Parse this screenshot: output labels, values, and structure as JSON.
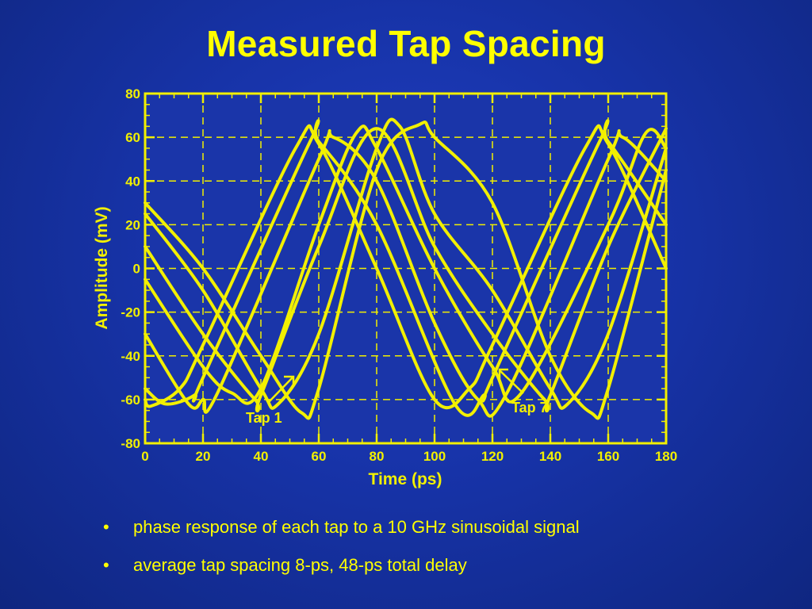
{
  "title": "Measured Tap Spacing",
  "bullets": [
    "phase response of each tap to a 10 GHz sinusoidal signal",
    "average tap spacing 8-ps, 48-ps total delay"
  ],
  "colors": {
    "background": "#1733a8",
    "accent": "#ffff00"
  },
  "chart_data": {
    "type": "line",
    "xlabel": "Time (ps)",
    "ylabel": "Amplitude (mV)",
    "xlim": [
      0,
      180
    ],
    "ylim": [
      -80,
      80
    ],
    "xticks": [
      0,
      20,
      40,
      60,
      80,
      100,
      120,
      140,
      160,
      180
    ],
    "yticks": [
      -80,
      -60,
      -40,
      -20,
      0,
      20,
      40,
      60,
      80
    ],
    "grid": true,
    "frequency_ghz": 10,
    "series": [
      {
        "x": [
          0,
          2,
          12,
          20,
          52,
          60,
          80,
          100,
          112,
          120,
          152,
          160,
          180
        ],
        "y": [
          -60,
          -63,
          -55,
          -35,
          55,
          57,
          0,
          -60,
          -55,
          -35,
          55,
          57,
          0
        ]
      },
      {
        "x": [
          0,
          7,
          17,
          20,
          57,
          60,
          80,
          107,
          117,
          120,
          157,
          160,
          180
        ],
        "y": [
          -55,
          -62,
          -58,
          -50,
          58,
          58,
          20,
          -62,
          -58,
          -50,
          58,
          58,
          20
        ]
      },
      {
        "x": [
          0,
          15,
          20,
          25,
          60,
          65,
          80,
          100,
          115,
          125,
          160,
          165,
          180
        ],
        "y": [
          -30,
          -62,
          -60,
          -57,
          50,
          60,
          40,
          -25,
          -60,
          -57,
          50,
          60,
          40
        ]
      },
      {
        "x": [
          0,
          20,
          30,
          40,
          60,
          73,
          80,
          100,
          120,
          130,
          160,
          173,
          180
        ],
        "y": [
          -5,
          -45,
          -57,
          -55,
          20,
          62,
          55,
          0,
          -45,
          -57,
          20,
          62,
          55
        ]
      },
      {
        "x": [
          0,
          20,
          38,
          40,
          60,
          80,
          100,
          120,
          138,
          140,
          160,
          180
        ],
        "y": [
          10,
          -30,
          -60,
          -58,
          10,
          64,
          10,
          -30,
          -60,
          -58,
          10,
          64
        ]
      },
      {
        "x": [
          0,
          20,
          40,
          46,
          60,
          80,
          88,
          100,
          120,
          140,
          146,
          160,
          180
        ],
        "y": [
          25,
          -10,
          -55,
          -62,
          -30,
          55,
          65,
          25,
          -10,
          -55,
          -62,
          -30,
          55
        ]
      },
      {
        "x": [
          0,
          20,
          40,
          54,
          60,
          80,
          95,
          100,
          120,
          140,
          154,
          160,
          180
        ],
        "y": [
          30,
          0,
          -40,
          -66,
          -55,
          45,
          66,
          60,
          30,
          -40,
          -66,
          -55,
          45
        ]
      }
    ],
    "annotations": [
      {
        "label": "Tap 1",
        "x": 36,
        "y": -66
      },
      {
        "label": "Tap 7",
        "x": 128,
        "y": -61
      }
    ]
  }
}
